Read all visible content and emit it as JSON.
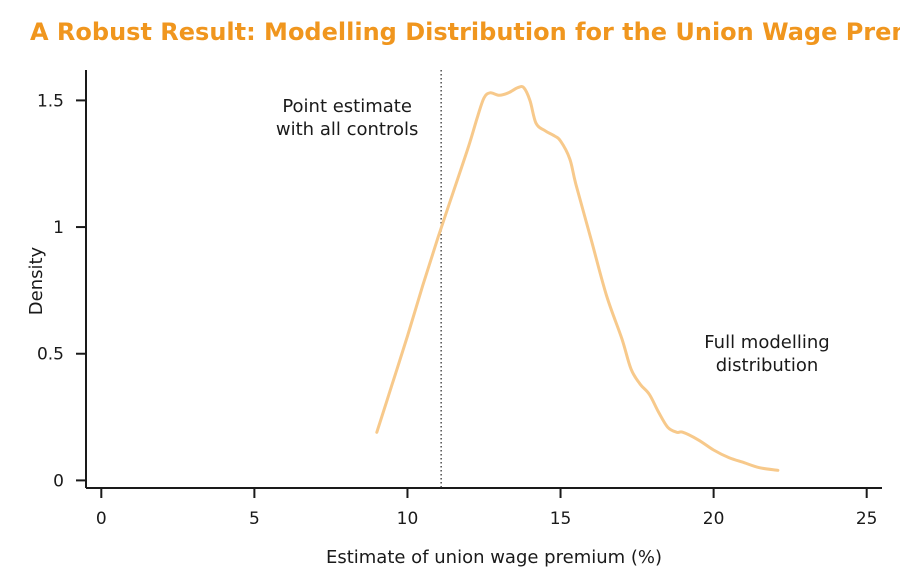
{
  "title": "A Robust Result: Modelling Distribution for the Union Wage Premium",
  "colors": {
    "title": "#f0961e",
    "series": "#f7c98b",
    "axis": "#1a1a1a",
    "reference_line": "#333333"
  },
  "chart_data": {
    "type": "line",
    "title": "A Robust Result: Modelling Distribution for the Union Wage Premium",
    "xlabel": "Estimate of union wage premium (%)",
    "ylabel": "Density",
    "xlim": [
      -0.5,
      25.5
    ],
    "ylim": [
      -0.03,
      1.62
    ],
    "x_ticks": [
      0,
      5,
      10,
      15,
      20,
      25
    ],
    "y_ticks": [
      0,
      0.5,
      1,
      1.5
    ],
    "x_tick_labels": [
      "0",
      "5",
      "10",
      "15",
      "20",
      "25"
    ],
    "y_tick_labels": [
      "0",
      "0.5",
      "1",
      "1.5"
    ],
    "grid": false,
    "reference_line": {
      "x": 11.1,
      "style": "dotted",
      "label_lines": [
        "Point estimate",
        "with all controls"
      ]
    },
    "series": [
      {
        "annotation_lines": [
          "Full modelling",
          "distribution"
        ],
        "x": [
          9.0,
          9.5,
          10.0,
          10.5,
          11.0,
          11.5,
          12.0,
          12.3,
          12.5,
          12.7,
          13.0,
          13.3,
          13.6,
          13.8,
          14.0,
          14.2,
          14.5,
          14.8,
          15.0,
          15.3,
          15.5,
          16.0,
          16.5,
          17.0,
          17.3,
          17.6,
          17.9,
          18.2,
          18.5,
          18.8,
          19.0,
          19.5,
          20.0,
          20.5,
          21.0,
          21.5,
          22.1
        ],
        "y": [
          0.19,
          0.38,
          0.57,
          0.77,
          0.96,
          1.14,
          1.32,
          1.44,
          1.51,
          1.53,
          1.52,
          1.53,
          1.55,
          1.55,
          1.5,
          1.41,
          1.38,
          1.36,
          1.34,
          1.27,
          1.17,
          0.95,
          0.73,
          0.56,
          0.44,
          0.38,
          0.34,
          0.27,
          0.21,
          0.19,
          0.19,
          0.16,
          0.12,
          0.09,
          0.07,
          0.05,
          0.04
        ]
      }
    ]
  }
}
